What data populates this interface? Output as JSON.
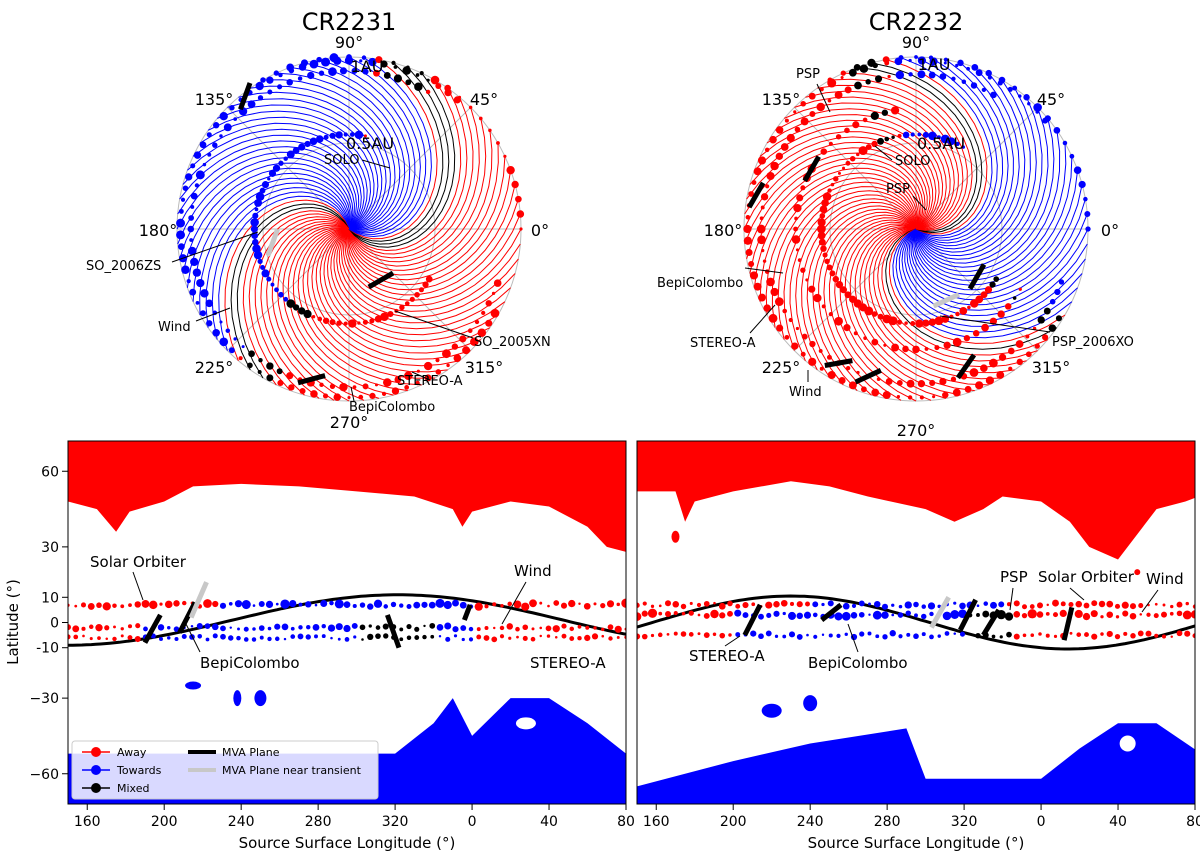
{
  "colors": {
    "away": "#ff0000",
    "towards": "#0000ff",
    "mixed": "#000000",
    "mva": "#000000",
    "mva_transient": "#c8c8c8"
  },
  "chart_data": [
    {
      "type": "polar",
      "title": "CR2231",
      "angle_labels": [
        "90°",
        "45°",
        "0°",
        "315°",
        "270°",
        "225°",
        "180°",
        "135°"
      ],
      "radial_labels": [
        "0.5AU",
        "1AU"
      ],
      "spacecraft_labels": [
        "SOLO",
        "SO_2006ZS",
        "Wind",
        "SO_2005XN",
        "STEREO-A",
        "BepiColombo"
      ]
    },
    {
      "type": "polar",
      "title": "CR2232",
      "angle_labels": [
        "90°",
        "45°",
        "0°",
        "315°",
        "270°",
        "225°",
        "180°",
        "135°"
      ],
      "radial_labels": [
        "0.5AU",
        "1AU"
      ],
      "spacecraft_labels": [
        "PSP",
        "SOLO",
        "PSP",
        "BepiColombo",
        "STEREO-A",
        "Wind",
        "PSP_2006XO"
      ]
    },
    {
      "type": "scatter",
      "title": "",
      "xlabel": "Source Surface Longitude (°)",
      "ylabel": "Latitude (°)",
      "xticks": [
        "160",
        "200",
        "240",
        "280",
        "320",
        "0",
        "40",
        "80"
      ],
      "yticks": [
        "60",
        "30",
        "10",
        "0",
        "-10",
        "−30",
        "−60"
      ],
      "ylim": [
        -72,
        72
      ],
      "annotations": [
        "Solar Orbiter",
        "Wind",
        "BepiColombo",
        "STEREO-A"
      ],
      "legend": {
        "placement": "lower-left",
        "entries": [
          "Away",
          "Towards",
          "Mixed",
          "MVA Plane",
          "MVA Plane near transient"
        ]
      }
    },
    {
      "type": "scatter",
      "title": "",
      "xlabel": "Source Surface Longitude (°)",
      "ylabel": "",
      "xticks": [
        "160",
        "200",
        "240",
        "280",
        "320",
        "0",
        "40",
        "80"
      ],
      "yticks": [],
      "ylim": [
        -72,
        72
      ],
      "annotations": [
        "PSP",
        "Solar Orbiter",
        "Wind",
        "STEREO-A",
        "BepiColombo"
      ]
    }
  ]
}
